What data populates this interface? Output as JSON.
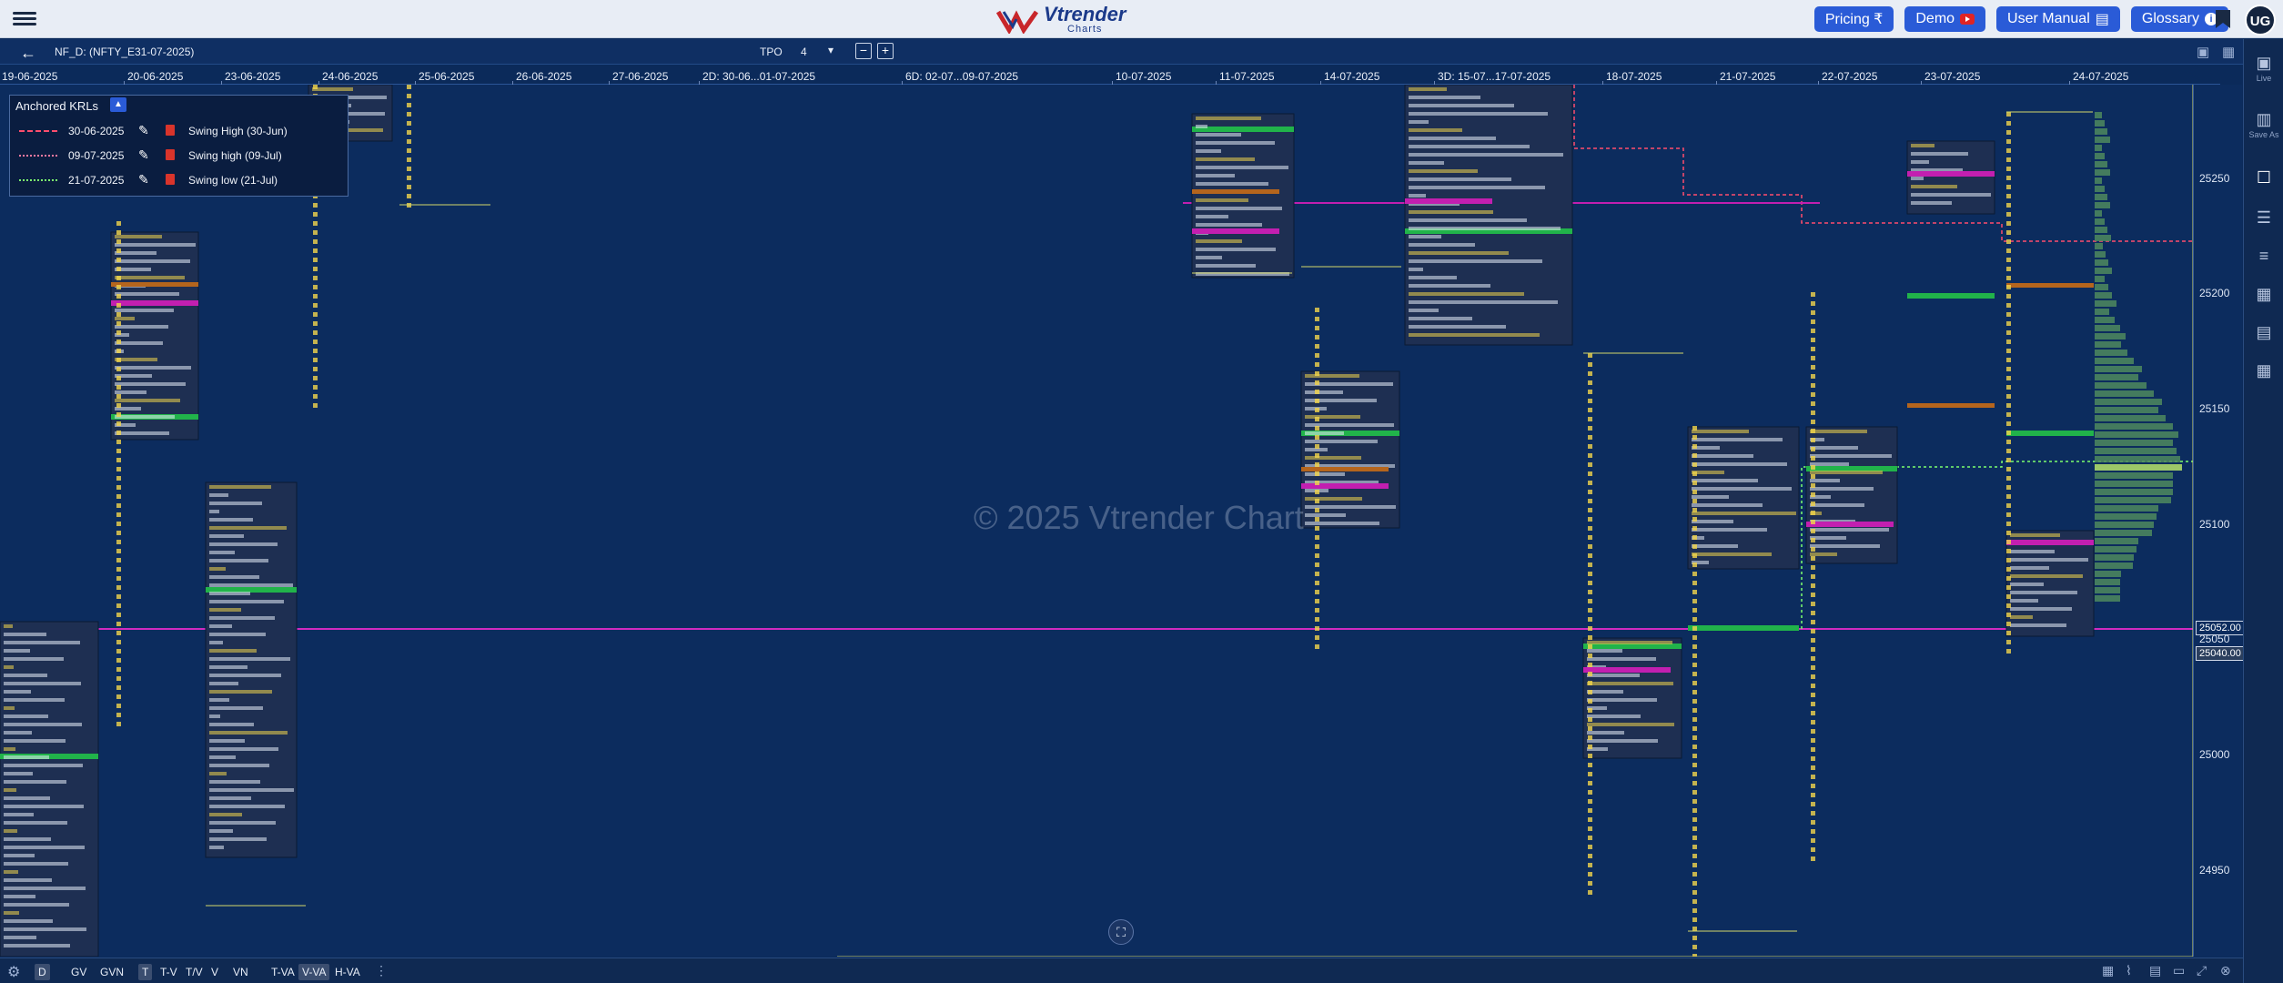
{
  "topbar": {
    "logo_name": "Vtrender",
    "logo_sub": "Charts",
    "buttons": {
      "pricing": "Pricing ₹",
      "demo": "Demo",
      "user_manual": "User Manual",
      "glossary": "Glossary"
    },
    "avatar_initials": "UG"
  },
  "toolbar": {
    "symbol": "NF_D: (NFTY_E31-07-2025)",
    "tpo_label": "TPO",
    "tpo_value": "4",
    "minus": "−",
    "plus": "+"
  },
  "dates": [
    "19-06-2025",
    "20-06-2025",
    "23-06-2025",
    "24-06-2025",
    "25-06-2025",
    "26-06-2025",
    "27-06-2025",
    "2D: 30-06...01-07-2025",
    "6D: 02-07...09-07-2025",
    "10-07-2025",
    "11-07-2025",
    "14-07-2025",
    "3D: 15-07...17-07-2025",
    "18-07-2025",
    "21-07-2025",
    "22-07-2025",
    "23-07-2025",
    "24-07-2025"
  ],
  "yaxis": {
    "ticks": [
      "25250",
      "25200",
      "25150",
      "25100",
      "25050",
      "25000",
      "24950"
    ],
    "badge_current": "25052.00",
    "badge_second": "25040.00"
  },
  "watermark": "© 2025 Vtrender Chart",
  "krl": {
    "title": "Anchored KRLs",
    "rows": [
      {
        "date": "30-06-2025",
        "name": "Swing High (30-Jun)",
        "color": "#ff4d6d",
        "style": "dashed"
      },
      {
        "date": "09-07-2025",
        "name": "Swing high (09-Jul)",
        "color": "#ff7aa0",
        "style": "dotted"
      },
      {
        "date": "21-07-2025",
        "name": "Swing low (21-Jul)",
        "color": "#7dff6e",
        "style": "dotted"
      }
    ]
  },
  "rail": {
    "live": "Live",
    "save_as": "Save As"
  },
  "bottombar": {
    "items": [
      "D",
      "GV",
      "GVN",
      "T",
      "T-V",
      "T/V",
      "V",
      "VN",
      "T-VA",
      "V-VA",
      "H-VA"
    ]
  },
  "colors": {
    "background": "#0c2c5e",
    "profile_box": "#1e2f52",
    "poc_green": "#21b34a",
    "poc_magenta": "#c21fb0",
    "vpoc_orange": "#b5651d",
    "letters_yellow": "#f2d64b",
    "letters_white": "#e6ecf7"
  }
}
